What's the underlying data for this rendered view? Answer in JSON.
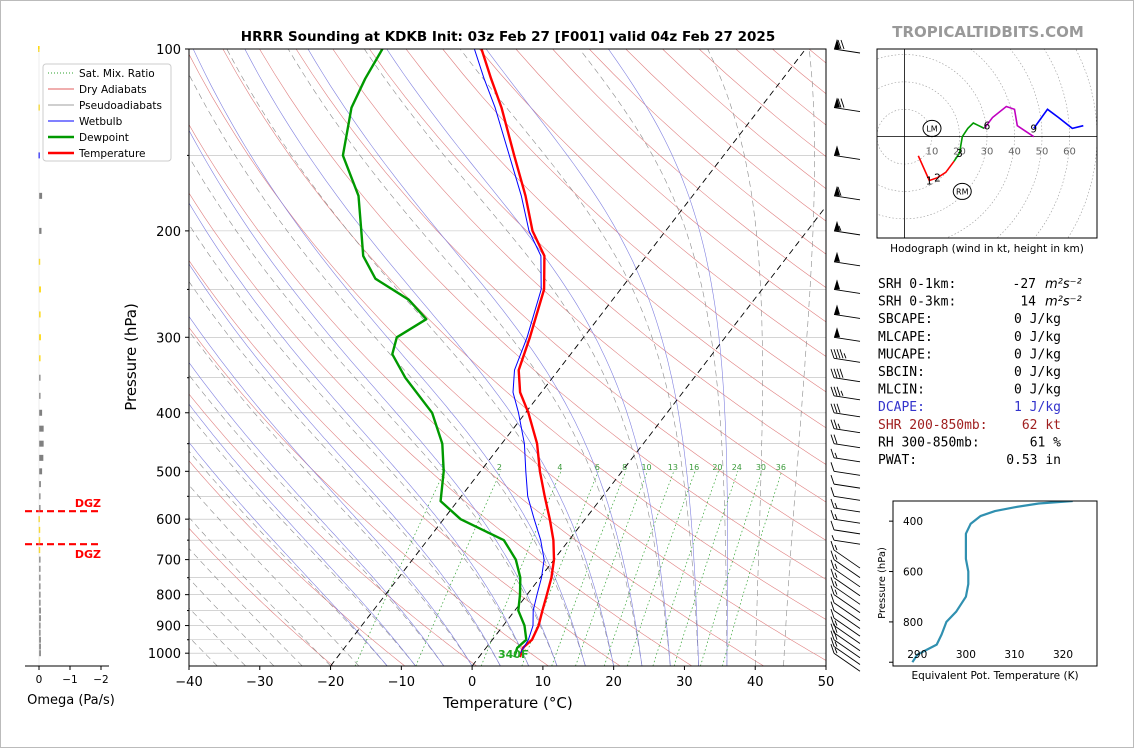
{
  "brand": "TROPICALTIDBITS.COM",
  "title": "HRRR Sounding at KDKB Init: 03z Feb 27 [F001] valid 04z Feb 27 2025",
  "skewt": {
    "xlabel": "Temperature (°C)",
    "ylabel": "Pressure (hPa)",
    "xlim": [
      -40,
      50
    ],
    "ylim": [
      1050,
      100
    ],
    "x_ticks": [
      "−40",
      "−30",
      "−20",
      "−10",
      "0",
      "10",
      "20",
      "30",
      "40",
      "50"
    ],
    "y_ticks": [
      "100",
      "200",
      "300",
      "400",
      "500",
      "600",
      "700",
      "800",
      "900",
      "1000"
    ],
    "mixing_ratio_labels": [
      "1",
      "2",
      "4",
      "6",
      "8",
      "10",
      "13",
      "16",
      "20",
      "24",
      "30",
      "36"
    ],
    "freezing_label": "340F"
  },
  "legend": [
    {
      "label": "Sat. Mix. Ratio",
      "color": "#2ca02c",
      "style": "dotted"
    },
    {
      "label": "Dry Adiabats",
      "color": "#d62728",
      "style": "solid-thin"
    },
    {
      "label": "Pseudoadiabats",
      "color": "#7f7f7f",
      "style": "solid-thin"
    },
    {
      "label": "Wetbulb",
      "color": "#0000ff",
      "style": "solid"
    },
    {
      "label": "Dewpoint",
      "color": "#009900",
      "style": "solid-thick"
    },
    {
      "label": "Temperature",
      "color": "#ff0000",
      "style": "solid-thick"
    }
  ],
  "chart_data": [
    {
      "type": "line",
      "name": "skew-t",
      "series": [
        {
          "name": "Temperature",
          "color": "#ff0000",
          "points": [
            [
              1015,
              5.8
            ],
            [
              980,
              5.2
            ],
            [
              950,
              5.6
            ],
            [
              900,
              5.0
            ],
            [
              850,
              3.9
            ],
            [
              800,
              2.8
            ],
            [
              750,
              1.6
            ],
            [
              700,
              0.0
            ],
            [
              650,
              -2.2
            ],
            [
              600,
              -5.0
            ],
            [
              550,
              -8.2
            ],
            [
              500,
              -11.6
            ],
            [
              450,
              -15.0
            ],
            [
              400,
              -19.6
            ],
            [
              370,
              -23.0
            ],
            [
              340,
              -25.6
            ],
            [
              300,
              -27.6
            ],
            [
              250,
              -30.8
            ],
            [
              220,
              -34.4
            ],
            [
              200,
              -38.8
            ],
            [
              175,
              -43.6
            ],
            [
              150,
              -49.6
            ],
            [
              125,
              -56.6
            ],
            [
              112,
              -61.2
            ],
            [
              100,
              -65.8
            ]
          ]
        },
        {
          "name": "Dewpoint",
          "color": "#009900",
          "points": [
            [
              1015,
              5.0
            ],
            [
              980,
              4.4
            ],
            [
              950,
              4.8
            ],
            [
              900,
              3.0
            ],
            [
              850,
              0.5
            ],
            [
              800,
              -1.0
            ],
            [
              750,
              -2.8
            ],
            [
              700,
              -5.4
            ],
            [
              650,
              -9.2
            ],
            [
              600,
              -17.6
            ],
            [
              560,
              -22.4
            ],
            [
              500,
              -25.2
            ],
            [
              450,
              -28.4
            ],
            [
              400,
              -33.2
            ],
            [
              350,
              -40.8
            ],
            [
              320,
              -45.2
            ],
            [
              300,
              -46.4
            ],
            [
              280,
              -44.2
            ],
            [
              260,
              -48.8
            ],
            [
              240,
              -55.8
            ],
            [
              220,
              -60.0
            ],
            [
              200,
              -63.0
            ],
            [
              175,
              -67.2
            ],
            [
              150,
              -73.8
            ],
            [
              125,
              -77.8
            ],
            [
              112,
              -79.0
            ],
            [
              100,
              -79.8
            ]
          ]
        },
        {
          "name": "Wetbulb",
          "color": "#0000ff",
          "points": [
            [
              1015,
              5.5
            ],
            [
              950,
              5.1
            ],
            [
              900,
              4.2
            ],
            [
              850,
              2.6
            ],
            [
              800,
              1.4
            ],
            [
              750,
              0.2
            ],
            [
              700,
              -1.4
            ],
            [
              650,
              -4.0
            ],
            [
              600,
              -7.2
            ],
            [
              550,
              -10.6
            ],
            [
              500,
              -13.6
            ],
            [
              450,
              -16.8
            ],
            [
              400,
              -21.0
            ],
            [
              370,
              -24.0
            ],
            [
              340,
              -26.2
            ],
            [
              300,
              -28.0
            ],
            [
              250,
              -31.2
            ],
            [
              220,
              -34.9
            ],
            [
              200,
              -39.3
            ],
            [
              175,
              -44.2
            ],
            [
              150,
              -50.3
            ],
            [
              125,
              -57.5
            ],
            [
              112,
              -62.2
            ],
            [
              100,
              -66.8
            ]
          ]
        }
      ],
      "wind_barbs_kt": [
        [
          100,
          70
        ],
        [
          125,
          70
        ],
        [
          150,
          50
        ],
        [
          175,
          60
        ],
        [
          200,
          55
        ],
        [
          225,
          50
        ],
        [
          250,
          50
        ],
        [
          275,
          50
        ],
        [
          300,
          50
        ],
        [
          325,
          45
        ],
        [
          350,
          40
        ],
        [
          375,
          35
        ],
        [
          400,
          30
        ],
        [
          425,
          25
        ],
        [
          450,
          20
        ],
        [
          475,
          15
        ],
        [
          500,
          10
        ],
        [
          525,
          10
        ],
        [
          550,
          10
        ],
        [
          575,
          15
        ],
        [
          600,
          15
        ],
        [
          625,
          10
        ],
        [
          650,
          5
        ],
        [
          675,
          15
        ],
        [
          700,
          15
        ],
        [
          725,
          15
        ],
        [
          750,
          15
        ],
        [
          775,
          15
        ],
        [
          800,
          15
        ],
        [
          825,
          10
        ],
        [
          850,
          10
        ],
        [
          875,
          10
        ],
        [
          900,
          15
        ],
        [
          925,
          20
        ],
        [
          950,
          20
        ],
        [
          975,
          15
        ],
        [
          1000,
          15
        ]
      ]
    },
    {
      "type": "bar",
      "name": "omega",
      "xlabel": "Omega (Pa/s)",
      "x_ticks": [
        "0",
        "−1",
        "−2"
      ],
      "xlim": [
        0.3,
        -2.4
      ],
      "dgz_label": "DGZ",
      "dgz_bounds_hpa": [
        582,
        660
      ],
      "values": [
        [
          100,
          0.03,
          "#ffd700"
        ],
        [
          125,
          0.02,
          "#ffd700"
        ],
        [
          150,
          0.02,
          "#0000ff"
        ],
        [
          175,
          -0.1,
          "#808080"
        ],
        [
          200,
          -0.08,
          "#808080"
        ],
        [
          225,
          0.01,
          "#ffd700"
        ],
        [
          250,
          -0.06,
          "#ffd700"
        ],
        [
          275,
          -0.05,
          "#ffd700"
        ],
        [
          300,
          -0.06,
          "#ffd700"
        ],
        [
          325,
          -0.04,
          "#ffd700"
        ],
        [
          350,
          -0.03,
          "#808080"
        ],
        [
          375,
          -0.03,
          "#808080"
        ],
        [
          400,
          -0.1,
          "#808080"
        ],
        [
          425,
          -0.15,
          "#808080"
        ],
        [
          450,
          -0.15,
          "#808080"
        ],
        [
          475,
          -0.14,
          "#808080"
        ],
        [
          500,
          -0.1,
          "#808080"
        ],
        [
          525,
          -0.06,
          "#808080"
        ],
        [
          550,
          -0.02,
          "#808080"
        ],
        [
          575,
          -0.01,
          "#808080"
        ],
        [
          600,
          0.02,
          "#ffd700"
        ],
        [
          625,
          0.01,
          "#ffd700"
        ],
        [
          650,
          0.01,
          "#ffd700"
        ],
        [
          675,
          0.01,
          "#ffd700"
        ],
        [
          700,
          -0.03,
          "#808080"
        ],
        [
          725,
          -0.02,
          "#808080"
        ],
        [
          750,
          -0.02,
          "#808080"
        ],
        [
          775,
          -0.04,
          "#808080"
        ],
        [
          800,
          -0.05,
          "#808080"
        ],
        [
          825,
          -0.05,
          "#808080"
        ],
        [
          850,
          -0.06,
          "#808080"
        ],
        [
          875,
          -0.06,
          "#808080"
        ],
        [
          900,
          -0.05,
          "#808080"
        ],
        [
          925,
          -0.05,
          "#808080"
        ],
        [
          950,
          -0.06,
          "#808080"
        ],
        [
          975,
          -0.06,
          "#808080"
        ],
        [
          1000,
          -0.06,
          "#808080"
        ]
      ]
    },
    {
      "type": "line",
      "name": "hodograph",
      "caption": "Hodograph (wind in kt, height in km)",
      "ring_labels": [
        "10",
        "20",
        "30",
        "40",
        "50",
        "60"
      ],
      "xlim": [
        -10,
        70
      ],
      "ylim": [
        -37,
        32
      ],
      "point_labels": [
        [
          "1",
          9,
          -16
        ],
        [
          "2",
          12,
          -15
        ],
        [
          "3",
          20,
          -6
        ],
        [
          "6",
          30,
          4
        ],
        [
          "9",
          47,
          3
        ]
      ],
      "markers": [
        [
          "LM",
          10,
          3
        ],
        [
          "RM",
          21,
          -20
        ]
      ],
      "segments": [
        {
          "color": "#ff0000",
          "points": [
            [
              5,
              -7
            ],
            [
              9,
              -16
            ],
            [
              12,
              -15
            ],
            [
              15,
              -13
            ],
            [
              18,
              -9
            ]
          ]
        },
        {
          "color": "#009900",
          "points": [
            [
              18,
              -9
            ],
            [
              20,
              -6
            ],
            [
              21,
              0
            ],
            [
              23,
              3
            ],
            [
              25,
              5
            ],
            [
              27,
              4
            ],
            [
              29,
              3
            ]
          ]
        },
        {
          "color": "#c000c0",
          "points": [
            [
              29,
              3
            ],
            [
              32,
              7
            ],
            [
              37,
              11
            ],
            [
              40,
              10
            ],
            [
              41,
              4
            ],
            [
              44,
              2
            ],
            [
              47,
              0
            ]
          ]
        },
        {
          "color": "#0000ff",
          "points": [
            [
              47,
              3
            ],
            [
              52,
              10
            ],
            [
              56,
              7
            ],
            [
              61,
              3
            ],
            [
              65,
              4
            ]
          ]
        }
      ]
    },
    {
      "type": "line",
      "name": "theta-e",
      "xlabel": "Equivalent Pot. Temperature (K)",
      "ylabel": "Pressure (hPa)",
      "x_ticks": [
        "290",
        "300",
        "310",
        "320"
      ],
      "y_ticks": [
        "400",
        "600",
        "800"
      ],
      "xlim": [
        285,
        327
      ],
      "ylim": [
        975,
        320
      ],
      "color": "#3090b0",
      "points": [
        [
          322,
          320
        ],
        [
          315,
          330
        ],
        [
          310,
          345
        ],
        [
          306,
          360
        ],
        [
          303,
          380
        ],
        [
          301,
          410
        ],
        [
          300,
          450
        ],
        [
          300,
          500
        ],
        [
          300,
          550
        ],
        [
          300.5,
          600
        ],
        [
          300.5,
          650
        ],
        [
          300,
          700
        ],
        [
          298,
          760
        ],
        [
          296,
          800
        ],
        [
          295,
          850
        ],
        [
          294,
          890
        ],
        [
          292,
          910
        ],
        [
          290,
          930
        ],
        [
          289,
          960
        ]
      ]
    }
  ],
  "stats": [
    {
      "label": "SRH 0-1km:",
      "value": "-27",
      "unit_html": "m²s⁻²",
      "color": "#000000"
    },
    {
      "label": "SRH 0-3km:",
      "value": "14",
      "unit_html": "m²s⁻²",
      "color": "#000000"
    },
    {
      "label": "SBCAPE:",
      "value": "0 J/kg",
      "color": "#000000"
    },
    {
      "label": "MLCAPE:",
      "value": "0 J/kg",
      "color": "#000000"
    },
    {
      "label": "MUCAPE:",
      "value": "0 J/kg",
      "color": "#000000"
    },
    {
      "label": "SBCIN:",
      "value": "0 J/kg",
      "color": "#000000"
    },
    {
      "label": "MLCIN:",
      "value": "0 J/kg",
      "color": "#000000"
    },
    {
      "label": "DCAPE:",
      "value": "1 J/kg",
      "color": "#3333cc"
    },
    {
      "label": "SHR 200-850mb:",
      "value": "62 kt",
      "color": "#a02020"
    },
    {
      "label": "RH 300-850mb:",
      "value": "61 %",
      "color": "#000000"
    },
    {
      "label": "PWAT:",
      "value": "0.53 in",
      "color": "#000000"
    }
  ]
}
